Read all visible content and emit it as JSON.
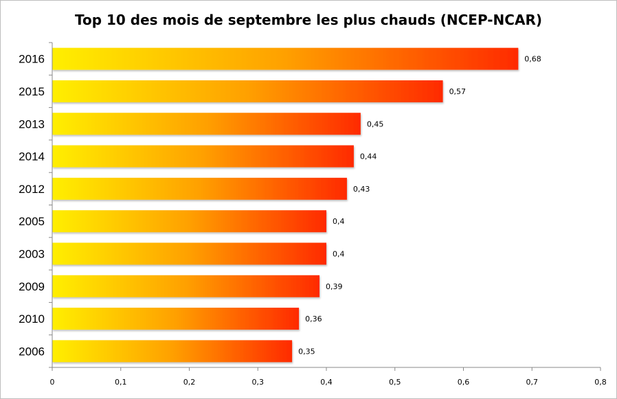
{
  "chart_data": {
    "type": "bar",
    "orientation": "horizontal",
    "title": "Top 10 des mois de septembre les plus chauds (NCEP-NCAR)",
    "categories": [
      "2016",
      "2015",
      "2013",
      "2014",
      "2012",
      "2005",
      "2003",
      "2009",
      "2010",
      "2006"
    ],
    "values": [
      0.68,
      0.57,
      0.45,
      0.44,
      0.43,
      0.4,
      0.4,
      0.39,
      0.36,
      0.35
    ],
    "data_labels": [
      "0,68",
      "0,57",
      "0,45",
      "0,44",
      "0,43",
      "0,4",
      "0,4",
      "0,39",
      "0,36",
      "0,35"
    ],
    "xlim": [
      0,
      0.8
    ],
    "x_ticks": [
      0,
      0.1,
      0.2,
      0.3,
      0.4,
      0.5,
      0.6,
      0.7,
      0.8
    ],
    "x_tick_labels": [
      "0",
      "0,1",
      "0,2",
      "0,3",
      "0,4",
      "0,5",
      "0,6",
      "0,7",
      "0,8"
    ],
    "grid": false,
    "legend": "none",
    "gradient_colors": [
      "#ffef00",
      "#ffa000",
      "#ff2a00"
    ]
  }
}
